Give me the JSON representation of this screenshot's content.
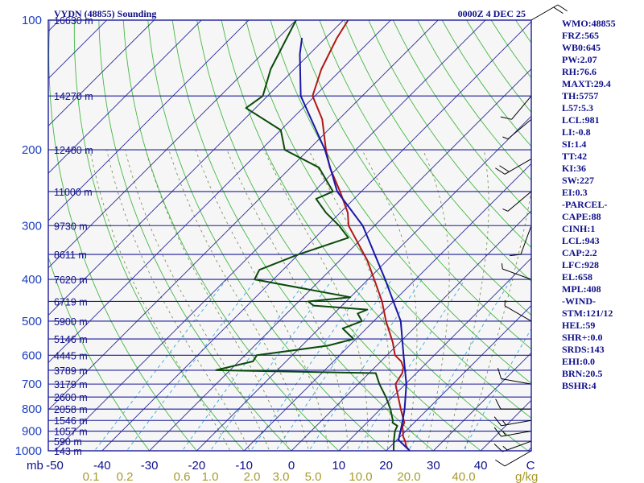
{
  "header": {
    "station_title": "VYDN (48855) Sounding",
    "time_label": "0000Z  4 DEC 25"
  },
  "indices": [
    "WMO:48855",
    "FRZ:565",
    "WB0:645",
    "PW:2.07",
    "RH:76.6",
    "MAXT:29.4",
    "TH:5757",
    "L57:5.3",
    "LCL:981",
    "LI:-0.8",
    "SI:1.4",
    "TT:42",
    "KI:36",
    "SW:227",
    "EI:0.3",
    "-PARCEL-",
    "CAPE:88",
    "CINH:1",
    "LCL:943",
    "CAP:2.2",
    "LFC:928",
    "EL:658",
    "MPL:408",
    "-WIND-",
    "STM:121/12",
    "HEL:59",
    "SHR+:0.0",
    "SRDS:143",
    "EHI:0.0",
    "BRN:20.5",
    "BSHR:4"
  ],
  "chart_data": {
    "type": "skew-t log-p sounding",
    "pressure_levels": [
      100,
      200,
      300,
      400,
      500,
      600,
      700,
      800,
      900,
      1000
    ],
    "height_labels": [
      {
        "p": 100,
        "label": "16630 m"
      },
      {
        "p": 150,
        "label": "14270 m"
      },
      {
        "p": 200,
        "label": "12480 m"
      },
      {
        "p": 250,
        "label": "11000 m"
      },
      {
        "p": 300,
        "label": "9730 m"
      },
      {
        "p": 350,
        "label": "8611 m"
      },
      {
        "p": 400,
        "label": "7620 m"
      },
      {
        "p": 450,
        "label": "6719 m"
      },
      {
        "p": 500,
        "label": "5900 m"
      },
      {
        "p": 550,
        "label": "5146 m"
      },
      {
        "p": 600,
        "label": "4445 m"
      },
      {
        "p": 650,
        "label": "3789 m"
      },
      {
        "p": 700,
        "label": "3179 m"
      },
      {
        "p": 750,
        "label": "2600 m"
      },
      {
        "p": 800,
        "label": "2058 m"
      },
      {
        "p": 850,
        "label": "1546 m"
      },
      {
        "p": 900,
        "label": "1057 m"
      },
      {
        "p": 950,
        "label": "590 m"
      },
      {
        "p": 1000,
        "label": "143 m"
      }
    ],
    "pressure_axis_unit": "mb",
    "temperature_ticks": [
      -50,
      -40,
      -30,
      -20,
      -10,
      0,
      10,
      20,
      30,
      40
    ],
    "temperature_axis_unit": "C",
    "mixing_ratio_ticks": [
      "0.1",
      "0.2",
      "0.6",
      "1.0",
      "2.0",
      "3.0",
      "5.0",
      "10.0",
      "20.0",
      "40.0"
    ],
    "mixing_ratio_unit": "g/kg",
    "series": [
      {
        "color": "#b01818",
        "points": [
          {
            "p": 1000,
            "t": 25
          },
          {
            "p": 980,
            "t": 23.5
          },
          {
            "p": 950,
            "t": 22
          },
          {
            "p": 925,
            "t": 20.5
          },
          {
            "p": 900,
            "t": 19.4
          },
          {
            "p": 880,
            "t": 18.4
          },
          {
            "p": 860,
            "t": 17.9
          },
          {
            "p": 850,
            "t": 17.3
          },
          {
            "p": 800,
            "t": 14.3
          },
          {
            "p": 750,
            "t": 11.2
          },
          {
            "p": 700,
            "t": 7.9
          },
          {
            "p": 660,
            "t": 7
          },
          {
            "p": 640,
            "t": 6
          },
          {
            "p": 620,
            "t": 4.3
          },
          {
            "p": 600,
            "t": 1.7
          },
          {
            "p": 560,
            "t": -1.5
          },
          {
            "p": 500,
            "t": -7.4
          },
          {
            "p": 450,
            "t": -12.4
          },
          {
            "p": 400,
            "t": -18.7
          },
          {
            "p": 360,
            "t": -24.4
          },
          {
            "p": 300,
            "t": -35.5
          },
          {
            "p": 280,
            "t": -38.4
          },
          {
            "p": 250,
            "t": -44.5
          },
          {
            "p": 220,
            "t": -51.7
          },
          {
            "p": 200,
            "t": -56.3
          },
          {
            "p": 170,
            "t": -63.5
          },
          {
            "p": 150,
            "t": -70.5
          },
          {
            "p": 130,
            "t": -74.3
          },
          {
            "p": 110,
            "t": -77.6
          },
          {
            "p": 100,
            "t": -79
          }
        ]
      },
      {
        "color": "#0b4a0b",
        "points": [
          {
            "p": 1000,
            "t": 21.6
          },
          {
            "p": 950,
            "t": 19.6
          },
          {
            "p": 900,
            "t": 17.7
          },
          {
            "p": 875,
            "t": 17.1
          },
          {
            "p": 860,
            "t": 15.4
          },
          {
            "p": 850,
            "t": 15
          },
          {
            "p": 800,
            "t": 12.1
          },
          {
            "p": 750,
            "t": 8.6
          },
          {
            "p": 700,
            "t": 4.5
          },
          {
            "p": 660,
            "t": 1.4
          },
          {
            "p": 650,
            "t": -33
          },
          {
            "p": 620,
            "t": -27
          },
          {
            "p": 600,
            "t": -27.5
          },
          {
            "p": 570,
            "t": -14.5
          },
          {
            "p": 550,
            "t": -10.5
          },
          {
            "p": 520,
            "t": -15
          },
          {
            "p": 500,
            "t": -12.5
          },
          {
            "p": 480,
            "t": -15
          },
          {
            "p": 470,
            "t": -13.8
          },
          {
            "p": 460,
            "t": -26
          },
          {
            "p": 450,
            "t": -28
          },
          {
            "p": 440,
            "t": -20
          },
          {
            "p": 400,
            "t": -44
          },
          {
            "p": 380,
            "t": -45
          },
          {
            "p": 350,
            "t": -40
          },
          {
            "p": 320,
            "t": -33
          },
          {
            "p": 300,
            "t": -37.5
          },
          {
            "p": 280,
            "t": -43
          },
          {
            "p": 260,
            "t": -48
          },
          {
            "p": 250,
            "t": -46
          },
          {
            "p": 220,
            "t": -54
          },
          {
            "p": 200,
            "t": -65
          },
          {
            "p": 180,
            "t": -70
          },
          {
            "p": 160,
            "t": -82
          },
          {
            "p": 150,
            "t": -81
          },
          {
            "p": 130,
            "t": -85
          },
          {
            "p": 100,
            "t": -90
          }
        ]
      },
      {
        "color": "#1818a8",
        "points": [
          {
            "p": 1000,
            "t": 25
          },
          {
            "p": 943,
            "t": 20.3
          },
          {
            "p": 900,
            "t": 18.9
          },
          {
            "p": 850,
            "t": 17.1
          },
          {
            "p": 800,
            "t": 15.1
          },
          {
            "p": 700,
            "t": 10.2
          },
          {
            "p": 600,
            "t": 3.5
          },
          {
            "p": 500,
            "t": -4.3
          },
          {
            "p": 400,
            "t": -16.4
          },
          {
            "p": 300,
            "t": -32.5
          },
          {
            "p": 250,
            "t": -45.1
          },
          {
            "p": 200,
            "t": -56.5
          },
          {
            "p": 150,
            "t": -73
          },
          {
            "p": 120,
            "t": -82
          },
          {
            "p": 110,
            "t": -85
          }
        ]
      }
    ],
    "wind_barbs": [
      {
        "p": 1000,
        "dir": 240,
        "kt": 10
      },
      {
        "p": 950,
        "dir": 250,
        "kt": 15
      },
      {
        "p": 900,
        "dir": 260,
        "kt": 15
      },
      {
        "p": 850,
        "dir": 260,
        "kt": 15
      },
      {
        "p": 800,
        "dir": 270,
        "kt": 10
      },
      {
        "p": 700,
        "dir": 280,
        "kt": 10
      },
      {
        "p": 500,
        "dir": 300,
        "kt": 5
      },
      {
        "p": 400,
        "dir": 290,
        "kt": 5
      },
      {
        "p": 300,
        "dir": 200,
        "kt": 10
      },
      {
        "p": 250,
        "dir": 230,
        "kt": 5
      },
      {
        "p": 210,
        "dir": 240,
        "kt": 20
      },
      {
        "p": 170,
        "dir": 230,
        "kt": 5
      },
      {
        "p": 150,
        "dir": 220,
        "kt": 10
      },
      {
        "p": 100,
        "dir": 60,
        "kt": 20
      }
    ]
  }
}
